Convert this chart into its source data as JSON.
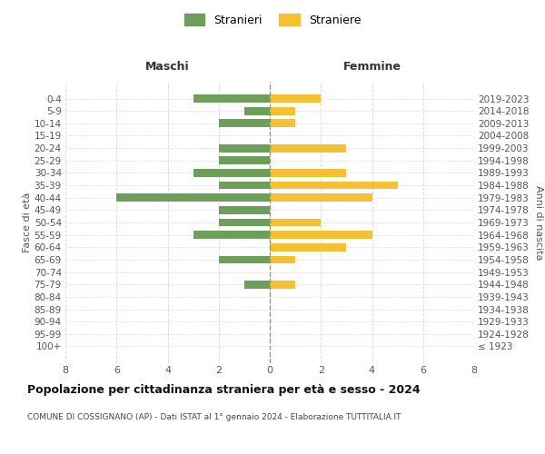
{
  "age_groups": [
    "100+",
    "95-99",
    "90-94",
    "85-89",
    "80-84",
    "75-79",
    "70-74",
    "65-69",
    "60-64",
    "55-59",
    "50-54",
    "45-49",
    "40-44",
    "35-39",
    "30-34",
    "25-29",
    "20-24",
    "15-19",
    "10-14",
    "5-9",
    "0-4"
  ],
  "birth_years": [
    "≤ 1923",
    "1924-1928",
    "1929-1933",
    "1934-1938",
    "1939-1943",
    "1944-1948",
    "1949-1953",
    "1954-1958",
    "1959-1963",
    "1964-1968",
    "1969-1973",
    "1974-1978",
    "1979-1983",
    "1984-1988",
    "1989-1993",
    "1994-1998",
    "1999-2003",
    "2004-2008",
    "2009-2013",
    "2014-2018",
    "2019-2023"
  ],
  "maschi": [
    0,
    0,
    0,
    0,
    0,
    1,
    0,
    2,
    0,
    3,
    2,
    2,
    6,
    2,
    3,
    2,
    2,
    0,
    2,
    1,
    3
  ],
  "femmine": [
    0,
    0,
    0,
    0,
    0,
    1,
    0,
    1,
    3,
    4,
    2,
    0,
    4,
    5,
    3,
    0,
    3,
    0,
    1,
    1,
    2
  ],
  "color_maschi": "#6d9e5a",
  "color_femmine": "#f5c033",
  "title": "Popolazione per cittadinanza straniera per età e sesso - 2024",
  "subtitle": "COMUNE DI COSSIGNANO (AP) - Dati ISTAT al 1° gennaio 2024 - Elaborazione TUTTITALIA.IT",
  "ylabel_left": "Fasce di età",
  "ylabel_right": "Anni di nascita",
  "label_maschi": "Maschi",
  "label_femmine": "Femmine",
  "legend_maschi": "Stranieri",
  "legend_femmine": "Straniere",
  "xlim": 8,
  "background_color": "#ffffff",
  "grid_color": "#dddddd"
}
